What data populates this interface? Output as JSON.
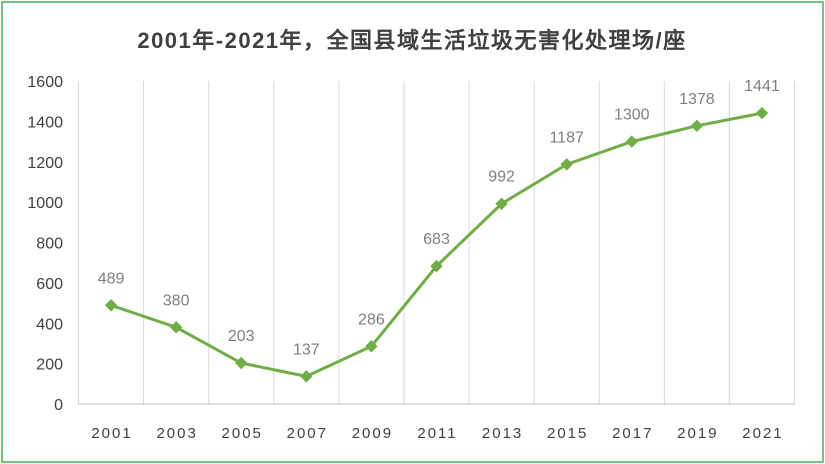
{
  "chart_data": {
    "type": "line",
    "title": "2001年-2021年，全国县域生活垃圾无害化处理场/座",
    "categories": [
      "2001",
      "2003",
      "2005",
      "2007",
      "2009",
      "2011",
      "2013",
      "2015",
      "2017",
      "2019",
      "2021"
    ],
    "values": [
      489,
      380,
      203,
      137,
      286,
      683,
      992,
      1187,
      1300,
      1378,
      1441
    ],
    "ylim": [
      0,
      1600
    ],
    "yticks": [
      0,
      200,
      400,
      600,
      800,
      1000,
      1200,
      1400,
      1600
    ],
    "xlabel": "",
    "ylabel": "",
    "grid": "vertical",
    "legend": "none",
    "marker": "diamond",
    "data_labels": "above"
  },
  "colors": {
    "line": "#70ad47",
    "border": "#4caf50",
    "data_label": "#7f7f7f",
    "tick_label": "#404040",
    "grid": "#d9d9d9"
  }
}
